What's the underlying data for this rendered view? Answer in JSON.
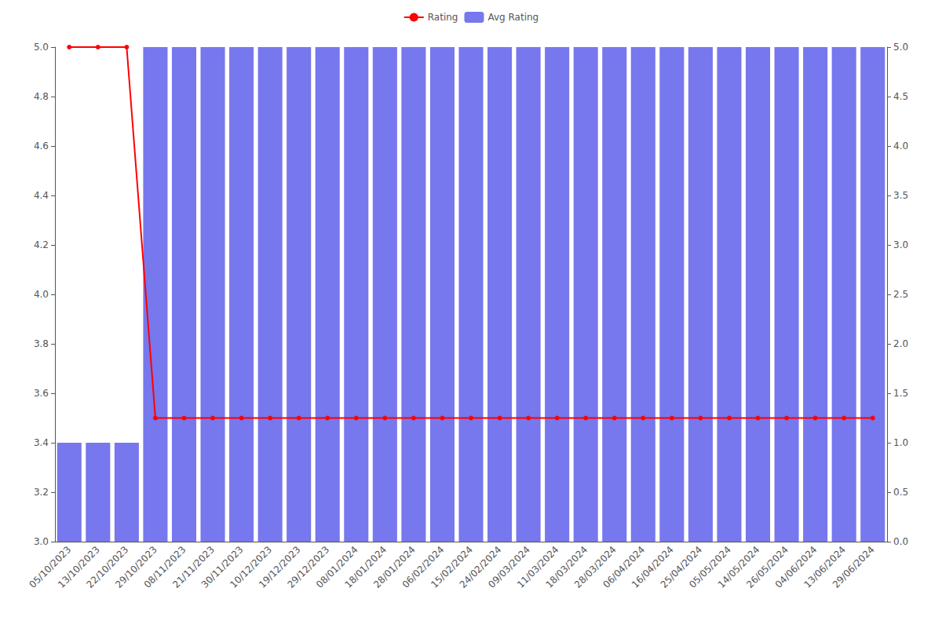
{
  "chart_data": {
    "type": "bar",
    "categories": [
      "05/10/2023",
      "13/10/2023",
      "22/10/2023",
      "29/10/2023",
      "08/11/2023",
      "21/11/2023",
      "30/11/2023",
      "10/12/2023",
      "19/12/2023",
      "29/12/2023",
      "08/01/2024",
      "18/01/2024",
      "28/01/2024",
      "06/02/2024",
      "15/02/2024",
      "24/02/2024",
      "09/03/2024",
      "11/03/2024",
      "18/03/2024",
      "28/03/2024",
      "06/04/2024",
      "16/04/2024",
      "25/04/2024",
      "05/05/2024",
      "14/05/2024",
      "26/05/2024",
      "04/06/2024",
      "13/06/2024",
      "29/06/2024"
    ],
    "series": [
      {
        "name": "Rating",
        "type": "line",
        "color": "#ff0000",
        "marker": "circle",
        "values": [
          5.0,
          5.0,
          5.0,
          3.5,
          3.5,
          3.5,
          3.5,
          3.5,
          3.5,
          3.5,
          3.5,
          3.5,
          3.5,
          3.5,
          3.5,
          3.5,
          3.5,
          3.5,
          3.5,
          3.5,
          3.5,
          3.5,
          3.5,
          3.5,
          3.5,
          3.5,
          3.5,
          3.5,
          3.5
        ]
      },
      {
        "name": "Avg Rating",
        "type": "bar",
        "color": "#7777ee",
        "values": [
          3.4,
          3.4,
          3.4,
          5.0,
          5.0,
          5.0,
          5.0,
          5.0,
          5.0,
          5.0,
          5.0,
          5.0,
          5.0,
          5.0,
          5.0,
          5.0,
          5.0,
          5.0,
          5.0,
          5.0,
          5.0,
          5.0,
          5.0,
          5.0,
          5.0,
          5.0,
          5.0,
          5.0,
          5.0
        ]
      }
    ],
    "ylim": [
      3.0,
      5.0
    ],
    "yticks": [
      {
        "value": 3.0,
        "label": "3.0"
      },
      3.2,
      3.4,
      3.6,
      3.8,
      {
        "value": 4.0,
        "label": "4.0"
      },
      4.2,
      4.4,
      4.6,
      4.8,
      {
        "value": 5.0,
        "label": "5.0"
      }
    ],
    "y2lim": [
      0,
      5.0
    ],
    "y2ticks": [
      {
        "value": 0,
        "label": "0.0"
      },
      0.5,
      {
        "value": 1.0,
        "label": "1.0"
      },
      1.5,
      {
        "value": 2.0,
        "label": "2.0"
      },
      2.5,
      {
        "value": 3.0,
        "label": "3.0"
      },
      3.5,
      {
        "value": 4.0,
        "label": "4.0"
      },
      4.5,
      {
        "value": 5.0,
        "label": "5.0"
      }
    ],
    "grid": false,
    "legend": "top"
  }
}
